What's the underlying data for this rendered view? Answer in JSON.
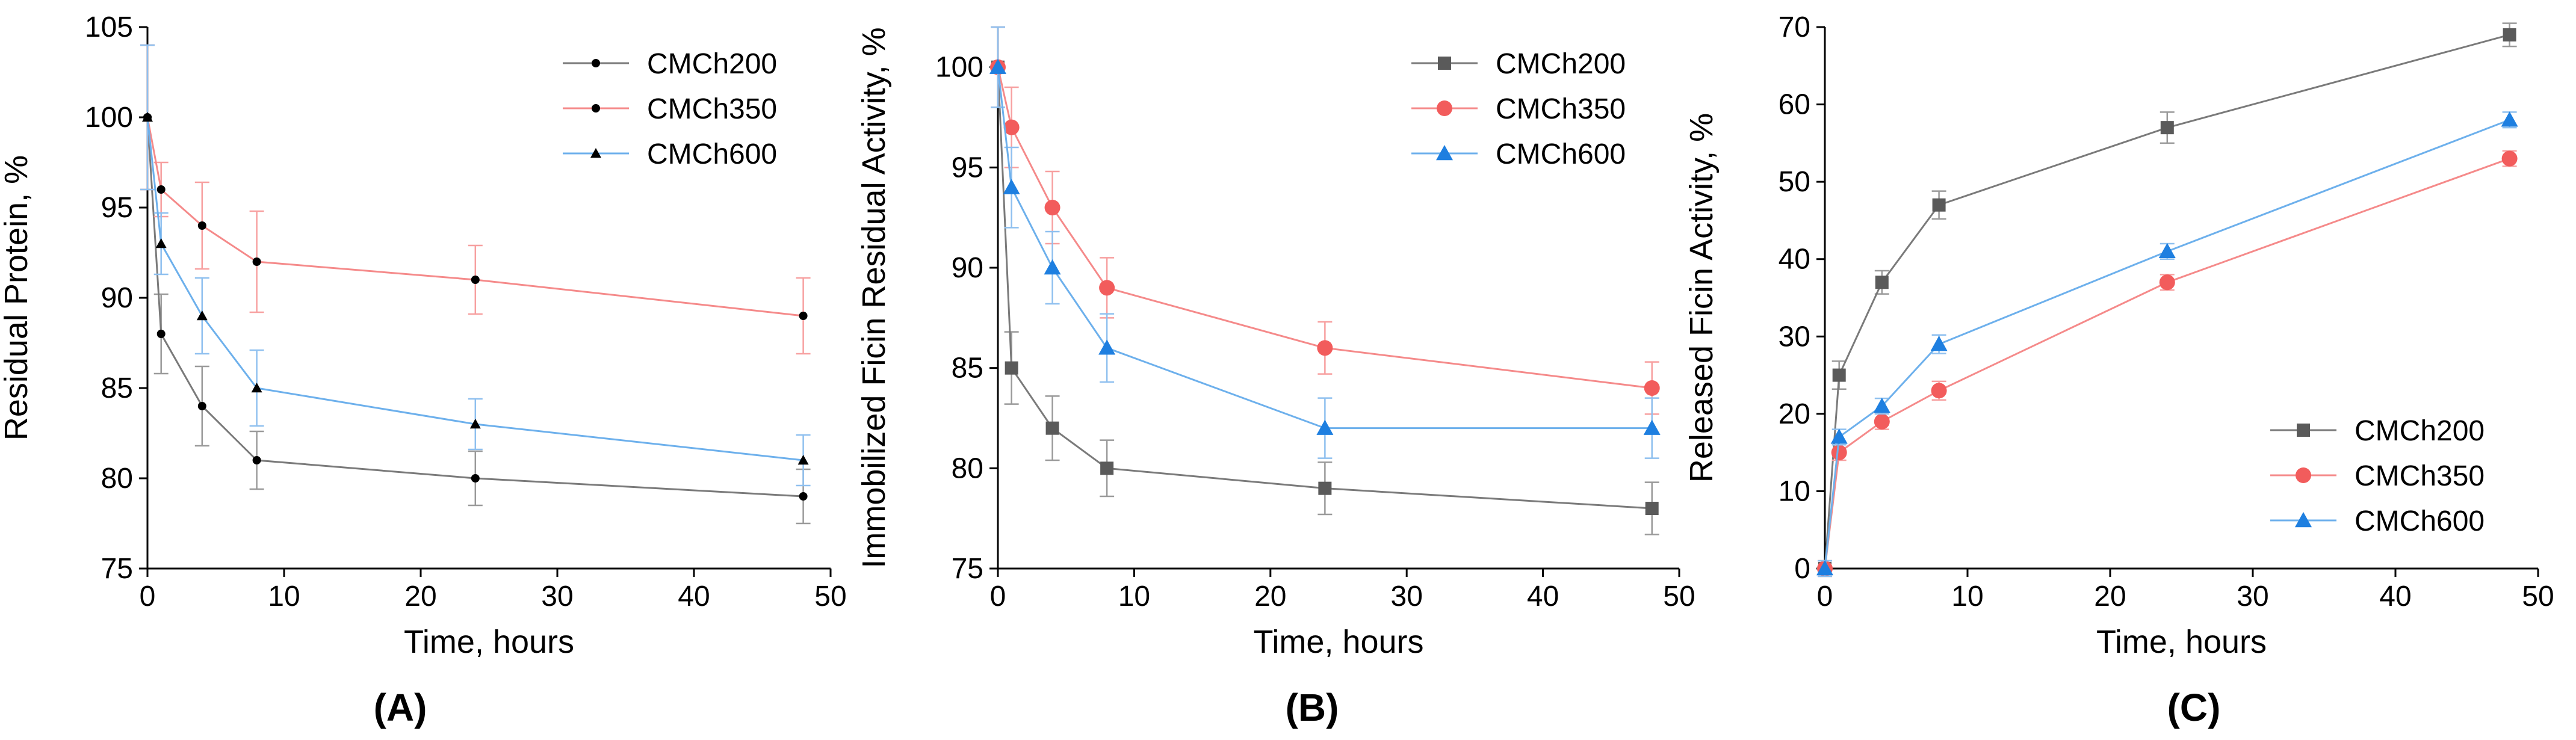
{
  "chart_data": [
    {
      "type": "line",
      "panel_label": "(A)",
      "xlabel": "Time, hours",
      "ylabel": "Residual Protein, %",
      "xlim": [
        0,
        50
      ],
      "ylim": [
        75,
        105
      ],
      "xticks": [
        0,
        10,
        20,
        30,
        40,
        50
      ],
      "yticks": [
        75,
        80,
        85,
        90,
        95,
        100,
        105
      ],
      "legend_position": "top-right",
      "x": [
        0,
        1,
        4,
        8,
        24,
        48
      ],
      "series": [
        {
          "name": "CMCh200",
          "color": "#5a5a5a",
          "marker": "dot",
          "values": [
            100,
            88,
            84,
            81,
            80,
            79
          ],
          "errors": [
            4,
            2.2,
            2.2,
            1.6,
            1.5,
            1.5
          ]
        },
        {
          "name": "CMCh350",
          "color": "#f25c5c",
          "marker": "dot",
          "values": [
            100,
            96,
            94,
            92,
            91,
            89
          ],
          "errors": [
            4,
            1.5,
            2.4,
            2.8,
            1.9,
            2.1
          ]
        },
        {
          "name": "CMCh600",
          "color": "#3d8fe0",
          "marker": "triangle",
          "values": [
            100,
            93,
            89,
            85,
            83,
            81
          ],
          "errors": [
            4,
            1.7,
            2.1,
            2.1,
            1.4,
            1.4
          ]
        }
      ]
    },
    {
      "type": "line",
      "panel_label": "(B)",
      "xlabel": "Time, hours",
      "ylabel": "Immobilized Ficin Residual Activity, %",
      "xlim": [
        0,
        50
      ],
      "ylim": [
        75,
        102
      ],
      "xticks": [
        0,
        10,
        20,
        30,
        40,
        50
      ],
      "yticks": [
        75,
        80,
        85,
        90,
        95,
        100
      ],
      "legend_position": "top-right",
      "x": [
        0,
        1,
        4,
        8,
        24,
        48
      ],
      "series": [
        {
          "name": "CMCh200",
          "color": "#5a5a5a",
          "marker": "square",
          "values": [
            100,
            85,
            82,
            80,
            79,
            78
          ],
          "errors": [
            2,
            1.8,
            1.6,
            1.4,
            1.3,
            1.3
          ]
        },
        {
          "name": "CMCh350",
          "color": "#f25c5c",
          "marker": "circle",
          "values": [
            100,
            97,
            93,
            89,
            86,
            84
          ],
          "errors": [
            2,
            2,
            1.8,
            1.5,
            1.3,
            1.3
          ]
        },
        {
          "name": "CMCh600",
          "color": "#1e7fe0",
          "marker": "triangle",
          "values": [
            100,
            94,
            90,
            86,
            82,
            82
          ],
          "errors": [
            2,
            2,
            1.8,
            1.7,
            1.5,
            1.5
          ]
        }
      ]
    },
    {
      "type": "line",
      "panel_label": "(C)",
      "xlabel": "Time, hours",
      "ylabel": "Released Ficin Activity, %",
      "xlim": [
        0,
        50
      ],
      "ylim": [
        0,
        70
      ],
      "xticks": [
        0,
        10,
        20,
        30,
        40,
        50
      ],
      "yticks": [
        0,
        10,
        20,
        30,
        40,
        50,
        60,
        70
      ],
      "legend_position": "bottom-right",
      "x": [
        0,
        1,
        4,
        8,
        24,
        48
      ],
      "series": [
        {
          "name": "CMCh200",
          "color": "#5a5a5a",
          "marker": "square",
          "values": [
            0,
            25,
            37,
            47,
            57,
            69
          ],
          "errors": [
            1,
            1.8,
            1.5,
            1.8,
            2,
            1.5
          ]
        },
        {
          "name": "CMCh350",
          "color": "#f25c5c",
          "marker": "circle",
          "values": [
            0,
            15,
            19,
            23,
            37,
            53
          ],
          "errors": [
            1,
            1,
            1,
            1.2,
            1,
            1
          ]
        },
        {
          "name": "CMCh600",
          "color": "#1e7fe0",
          "marker": "triangle",
          "values": [
            0,
            17,
            21,
            29,
            41,
            58
          ],
          "errors": [
            1,
            1,
            1,
            1.2,
            1,
            1
          ]
        }
      ]
    }
  ]
}
